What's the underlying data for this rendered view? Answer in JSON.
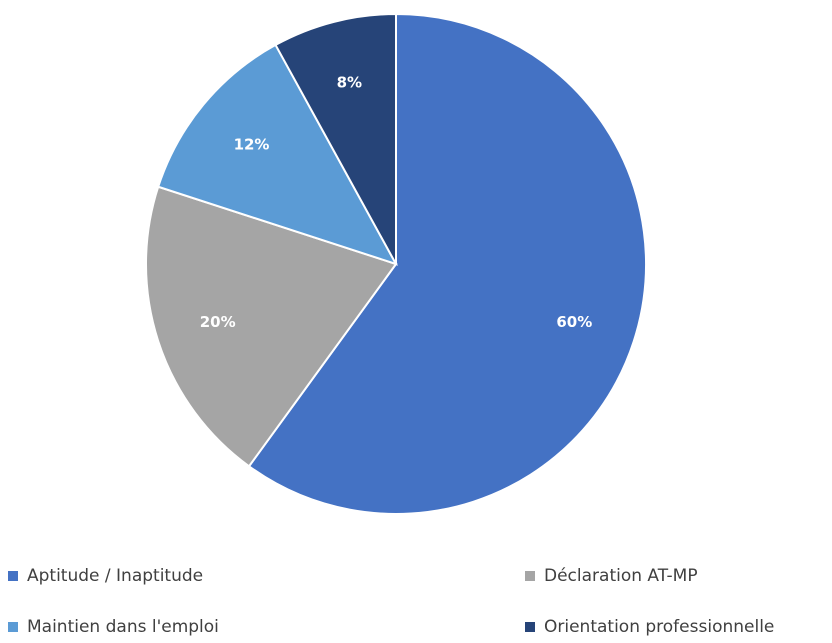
{
  "chart_data": {
    "type": "pie",
    "categories": [
      "Aptitude / Inaptitude",
      "Déclaration AT-MP",
      "Maintien dans l'emploi",
      "Orientation professionnelle"
    ],
    "values": [
      60,
      20,
      12,
      8
    ],
    "value_labels": [
      "60%",
      "20%",
      "12%",
      "8%"
    ],
    "colors": [
      "#4472C4",
      "#A5A5A5",
      "#5B9BD5",
      "#264478"
    ],
    "start_angle_deg": 0,
    "direction": "clockwise",
    "legend_position": "bottom",
    "title": ""
  }
}
